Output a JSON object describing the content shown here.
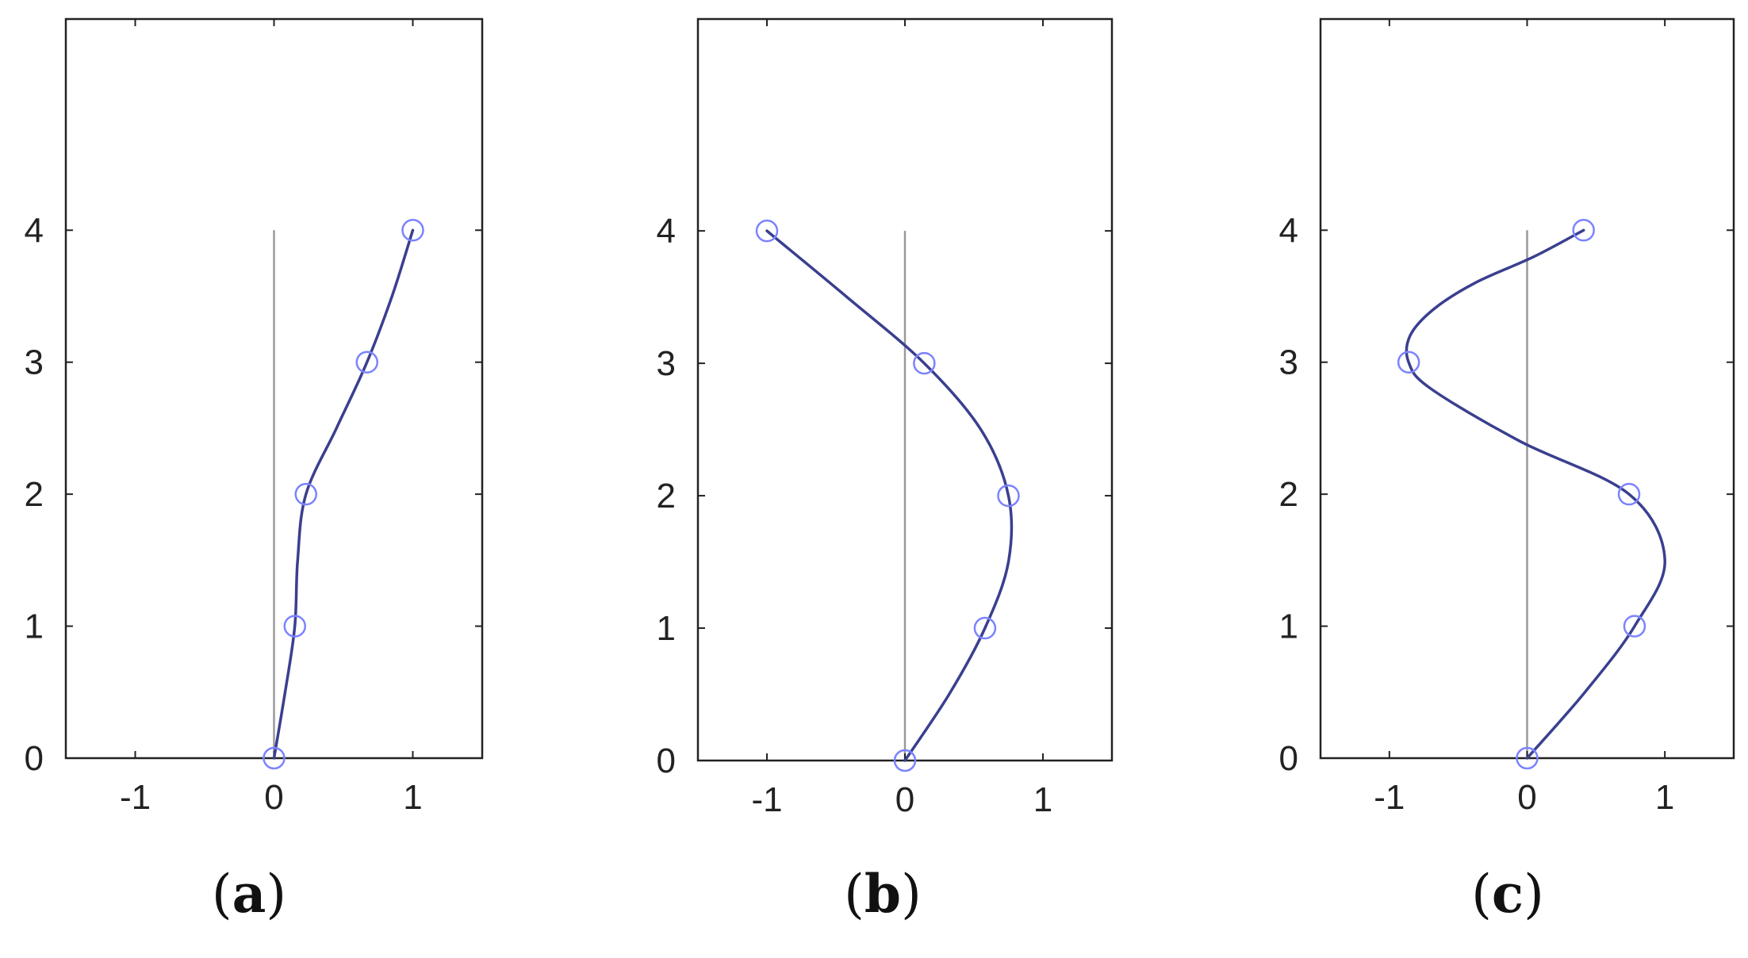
{
  "chart_data": [
    {
      "type": "line",
      "panel_label": "a",
      "x": [
        0,
        0.15,
        0.23,
        0.67,
        1.0
      ],
      "y": [
        0,
        1,
        2,
        3,
        4
      ],
      "curve": [
        [
          0,
          0
        ],
        [
          0.08,
          0.5
        ],
        [
          0.15,
          1
        ],
        [
          0.17,
          1.5
        ],
        [
          0.23,
          2
        ],
        [
          0.45,
          2.5
        ],
        [
          0.67,
          3
        ],
        [
          0.85,
          3.5
        ],
        [
          1.0,
          4
        ]
      ],
      "xticks": [
        "-1",
        "0",
        "1"
      ],
      "yticks": [
        "0",
        "1",
        "2",
        "3",
        "4"
      ],
      "xlim": [
        -1.5,
        1.5
      ],
      "ylim": [
        0,
        5.6
      ],
      "reference_line": {
        "x": 0,
        "y": [
          0,
          4
        ]
      },
      "colors": {
        "line": "#3a3f8f",
        "marker": "#7b83ff",
        "reference": "#9a9a9a"
      }
    },
    {
      "type": "line",
      "panel_label": "b",
      "x": [
        0,
        0.58,
        0.75,
        0.14,
        -1.0
      ],
      "y": [
        0,
        1,
        2,
        3,
        4
      ],
      "curve": [
        [
          0,
          0
        ],
        [
          0.32,
          0.5
        ],
        [
          0.58,
          1
        ],
        [
          0.75,
          1.5
        ],
        [
          0.75,
          2
        ],
        [
          0.55,
          2.5
        ],
        [
          0.14,
          3
        ],
        [
          -0.42,
          3.5
        ],
        [
          -1.0,
          4
        ]
      ],
      "xticks": [
        "-1",
        "0",
        "1"
      ],
      "yticks": [
        "0",
        "1",
        "2",
        "3",
        "4"
      ],
      "xlim": [
        -1.5,
        1.5
      ],
      "ylim": [
        0,
        5.6
      ],
      "reference_line": {
        "x": 0,
        "y": [
          0,
          4
        ]
      },
      "colors": {
        "line": "#3a3f8f",
        "marker": "#7b83ff",
        "reference": "#9a9a9a"
      }
    },
    {
      "type": "line",
      "panel_label": "c",
      "x": [
        0,
        0.78,
        0.74,
        -0.86,
        0.41
      ],
      "y": [
        0,
        1,
        2,
        3,
        4
      ],
      "curve": [
        [
          0,
          0
        ],
        [
          0.42,
          0.5
        ],
        [
          0.78,
          1
        ],
        [
          1.0,
          1.5
        ],
        [
          0.74,
          2
        ],
        [
          -0.05,
          2.4
        ],
        [
          -0.7,
          2.8
        ],
        [
          -0.86,
          3
        ],
        [
          -0.85,
          3.2
        ],
        [
          -0.68,
          3.4
        ],
        [
          -0.38,
          3.6
        ],
        [
          0.05,
          3.8
        ],
        [
          0.41,
          4
        ]
      ],
      "xticks": [
        "-1",
        "0",
        "1"
      ],
      "yticks": [
        "0",
        "1",
        "2",
        "3",
        "4"
      ],
      "xlim": [
        -1.5,
        1.5
      ],
      "ylim": [
        0,
        5.6
      ],
      "reference_line": {
        "x": 0,
        "y": [
          0,
          4
        ]
      },
      "colors": {
        "line": "#3a3f8f",
        "marker": "#7b83ff",
        "reference": "#9a9a9a"
      }
    }
  ]
}
